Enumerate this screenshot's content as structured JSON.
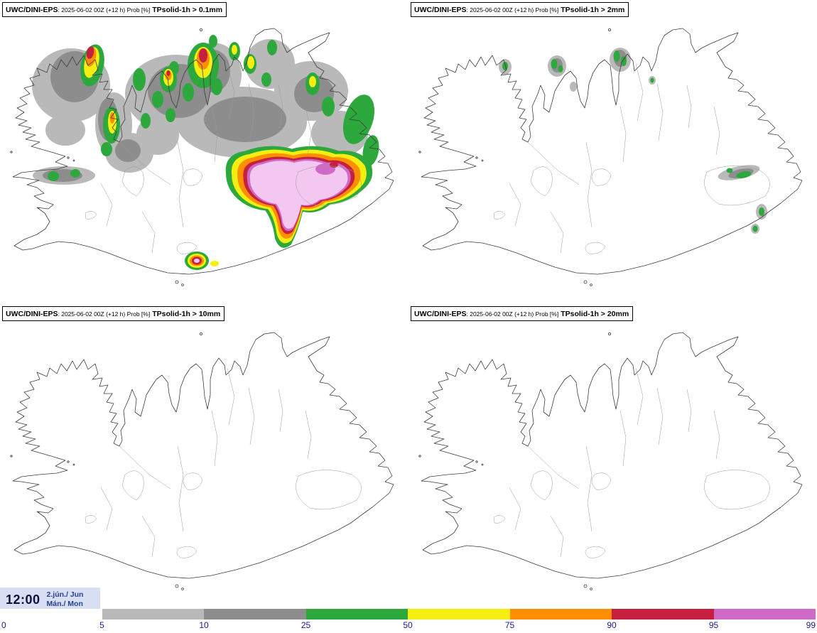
{
  "panels": [
    {
      "model": "UWC/DINI-EPS",
      "meta": ": 2025-06-02 00Z (+12 h) Prob [%]",
      "threshold": "TPsolid-1h > 0.1mm"
    },
    {
      "model": "UWC/DINI-EPS",
      "meta": ": 2025-06-02 00Z (+12 h) Prob [%]",
      "threshold": "TPsolid-1h > 2mm"
    },
    {
      "model": "UWC/DINI-EPS",
      "meta": ": 2025-06-02 00Z (+12 h) Prob [%]",
      "threshold": "TPsolid-1h > 10mm"
    },
    {
      "model": "UWC/DINI-EPS",
      "meta": ": 2025-06-02 00Z (+12 h) Prob [%]",
      "threshold": "TPsolid-1h > 20mm"
    }
  ],
  "footer": {
    "time": "12:00",
    "date_line1": "2.jún./ Jun",
    "date_line2": "Mán./ Mon"
  },
  "colorbar": {
    "unit": "Prob [%]",
    "ticks": [
      "0",
      "5",
      "10",
      "25",
      "50",
      "75",
      "90",
      "95",
      "99"
    ],
    "segments": [
      {
        "range": "0-5",
        "color": "#ffffff"
      },
      {
        "range": "5-10",
        "color": "#b9b9b9"
      },
      {
        "range": "10-25",
        "color": "#8d8d8d"
      },
      {
        "range": "25-50",
        "color": "#2ca83c"
      },
      {
        "range": "50-75",
        "color": "#f4ef10"
      },
      {
        "range": "75-90",
        "color": "#ff8f00"
      },
      {
        "range": "90-95",
        "color": "#c62040"
      },
      {
        "range": "95-99",
        "color": "#cf6ac9"
      }
    ]
  }
}
